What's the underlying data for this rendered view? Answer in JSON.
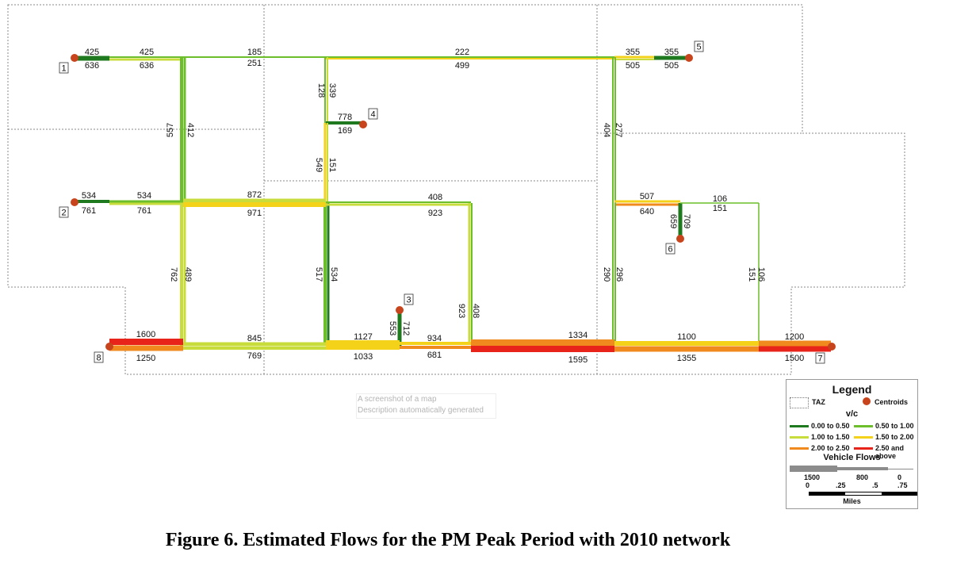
{
  "caption": "Figure 6. Estimated Flows for the PM Peak Period with 2010 network",
  "alt_text": {
    "line1": "A screenshot of a map",
    "line2": "Description automatically generated"
  },
  "centroids": [
    "1",
    "2",
    "3",
    "4",
    "5",
    "6",
    "7",
    "8"
  ],
  "link_flows": [
    "425",
    "636",
    "425",
    "636",
    "185",
    "251",
    "222",
    "499",
    "355",
    "505",
    "355",
    "505",
    "339",
    "128",
    "778",
    "169",
    "557",
    "412",
    "549",
    "151",
    "404",
    "277",
    "534",
    "761",
    "534",
    "761",
    "872",
    "971",
    "408",
    "923",
    "507",
    "640",
    "106",
    "151",
    "659",
    "709",
    "762",
    "489",
    "517",
    "534",
    "290",
    "296",
    "151",
    "106",
    "923",
    "408",
    "553",
    "712",
    "1600",
    "1250",
    "845",
    "769",
    "1127",
    "1033",
    "934",
    "681",
    "1334",
    "1595",
    "1100",
    "1355",
    "1200",
    "1500"
  ],
  "legend": {
    "title": "Legend",
    "taz_label": "TAZ",
    "centroids_label": "Centroids",
    "vc_label": "v/c",
    "classes": [
      {
        "label": "0.00 to 0.50",
        "color": "#1f7a1f"
      },
      {
        "label": "0.50 to 1.00",
        "color": "#6cbf2a"
      },
      {
        "label": "1.00 to 1.50",
        "color": "#c8dc3c"
      },
      {
        "label": "1.50 to 2.00",
        "color": "#f5d21a"
      },
      {
        "label": "2.00 to 2.50",
        "color": "#f08a1e"
      },
      {
        "label": "2.50 and above",
        "color": "#e8231a"
      }
    ],
    "flows_label": "Vehicle Flows",
    "flow_ticks": [
      "1500",
      "800",
      "0"
    ],
    "scale_ticks": [
      "0",
      ".25",
      ".5",
      ".75"
    ],
    "scale_unit": "Miles"
  },
  "colors": {
    "dark_green": "#1f7a1f",
    "green": "#6cbf2a",
    "yellow_green": "#c8dc3c",
    "yellow": "#f5d21a",
    "orange": "#f08a1e",
    "red": "#e8231a",
    "centroid": "#c8441c",
    "taz_border": "#8a8a8a"
  }
}
